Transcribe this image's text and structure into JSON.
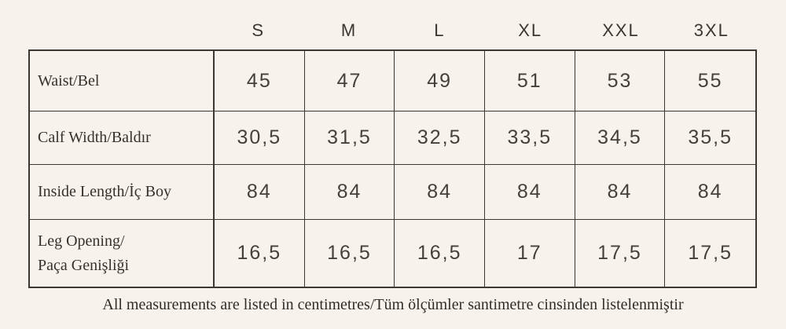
{
  "colors": {
    "background": "#f7f3ec",
    "text": "#34322c",
    "border": "#3b3831"
  },
  "table": {
    "size_headers": [
      "S",
      "M",
      "L",
      "XL",
      "XXL",
      "3XL"
    ],
    "rows": [
      {
        "label": "Waist/Bel",
        "values": [
          "45",
          "47",
          "49",
          "51",
          "53",
          "55"
        ]
      },
      {
        "label": "Calf Width/Baldır",
        "values": [
          "30,5",
          "31,5",
          "32,5",
          "33,5",
          "34,5",
          "35,5"
        ]
      },
      {
        "label": "Inside Length/İç Boy",
        "values": [
          "84",
          "84",
          "84",
          "84",
          "84",
          "84"
        ]
      },
      {
        "label": "Leg Opening/\nPaça Genişliği",
        "values": [
          "16,5",
          "16,5",
          "16,5",
          "17",
          "17,5",
          "17,5"
        ]
      }
    ]
  },
  "footer": {
    "note": "All measurements are listed in centimetres/Tüm ölçümler santimetre cinsinden listelenmiştir"
  }
}
